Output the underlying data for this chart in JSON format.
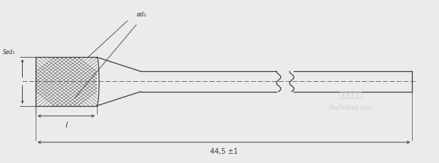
{
  "bg_color": "#ebebeb",
  "line_color": "#3a3a3a",
  "dim_color": "#3a3a3a",
  "watermark1": "嘉峪检测网",
  "watermark2": "AnyTesting.com",
  "label_phi_d1": "Sød₁",
  "label_phi_d2": "ød₂",
  "label_l": "l",
  "label_dim": "44,5 ±1",
  "fig_width": 6.16,
  "fig_height": 2.29,
  "dpi": 100
}
